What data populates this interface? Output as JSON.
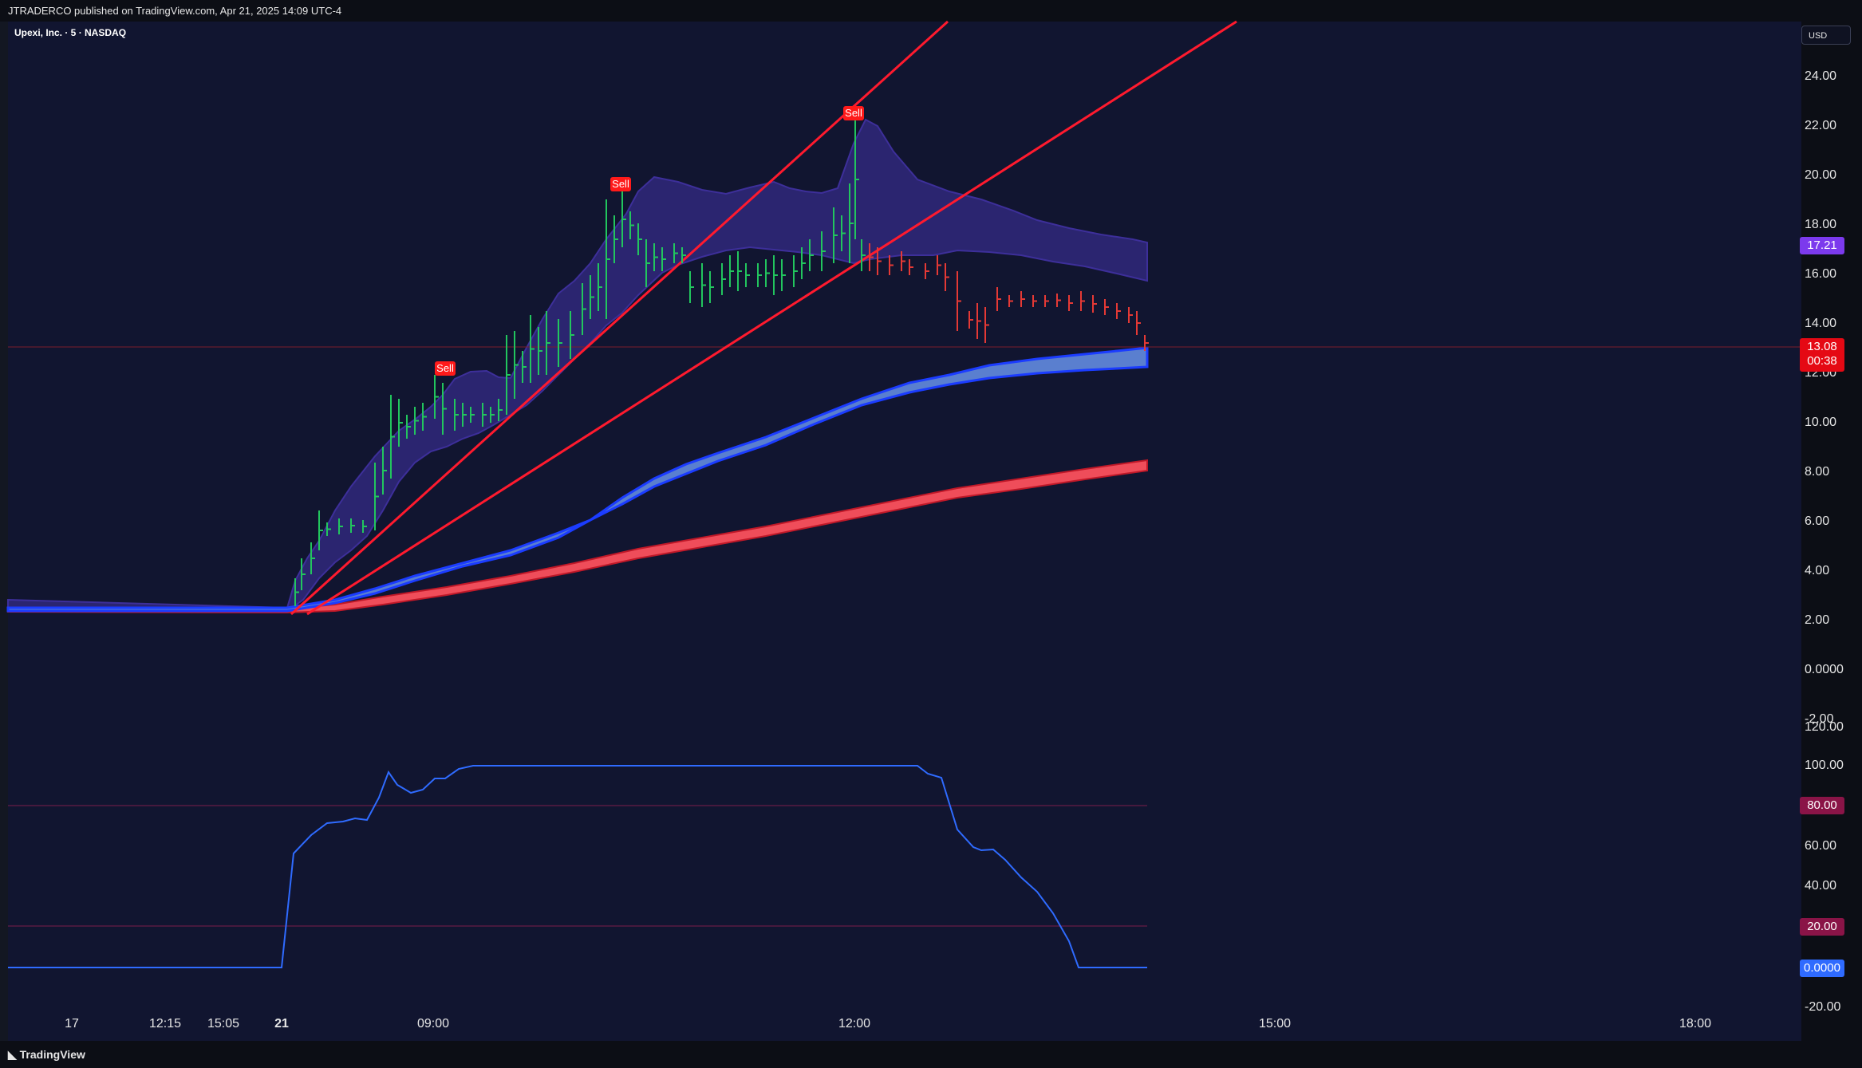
{
  "header": {
    "publish_text": "JTRADERCO published on TradingView.com, Apr 21, 2025 14:09 UTC-4",
    "symbol": "Upexi, Inc. · 5 · NASDAQ",
    "currency_button": "USD"
  },
  "price_axis": {
    "labels": [
      "24.00",
      "22.00",
      "20.00",
      "18.00",
      "16.00",
      "14.00",
      "12.00",
      "10.00",
      "8.00",
      "6.00",
      "4.00",
      "2.00",
      "0.0000",
      "-2.00"
    ]
  },
  "price_tags": {
    "upper_band": "17.21",
    "last_price": "13.08",
    "countdown": "00:38"
  },
  "oscillator_axis": {
    "labels": [
      "120.00",
      "100.00",
      "60.00",
      "40.00",
      "-20.00"
    ],
    "tags": {
      "overbought": "80.00",
      "oversold": "20.00",
      "current": "0.0000"
    }
  },
  "time_axis": {
    "labels": [
      "17",
      "12:15",
      "15:05",
      "21",
      "09:00",
      "12:00",
      "15:00",
      "18:00"
    ]
  },
  "signals": {
    "sell_label": "Sell"
  },
  "footer": {
    "brand": "TradingView"
  },
  "colors": {
    "background": "#111530",
    "up_bar": "#22c55e",
    "down_bar": "#e53935",
    "trendline": "#e53935",
    "band_fill": "#2b2570",
    "ma_blue": "#2f6bff",
    "ma_blue_fill": "#5a7fcf",
    "ma_red": "#ef4d5a",
    "oscillator_line": "#2f6bff",
    "overbought_tag": "#8a1447",
    "current_tag": "#2f6bff",
    "upper_tag": "#7c3aed"
  },
  "chart_data": {
    "type": "line",
    "price_range": [
      -2,
      24
    ],
    "last_price": 13.08,
    "oscillator_range": [
      -20,
      120
    ],
    "oscillator_levels": [
      80,
      20
    ],
    "sell_signals": [
      {
        "time": "09:05",
        "price": 11.7
      },
      {
        "time": "10:20",
        "price": 19.7
      },
      {
        "time": "12:00",
        "price": 22.6
      }
    ]
  }
}
